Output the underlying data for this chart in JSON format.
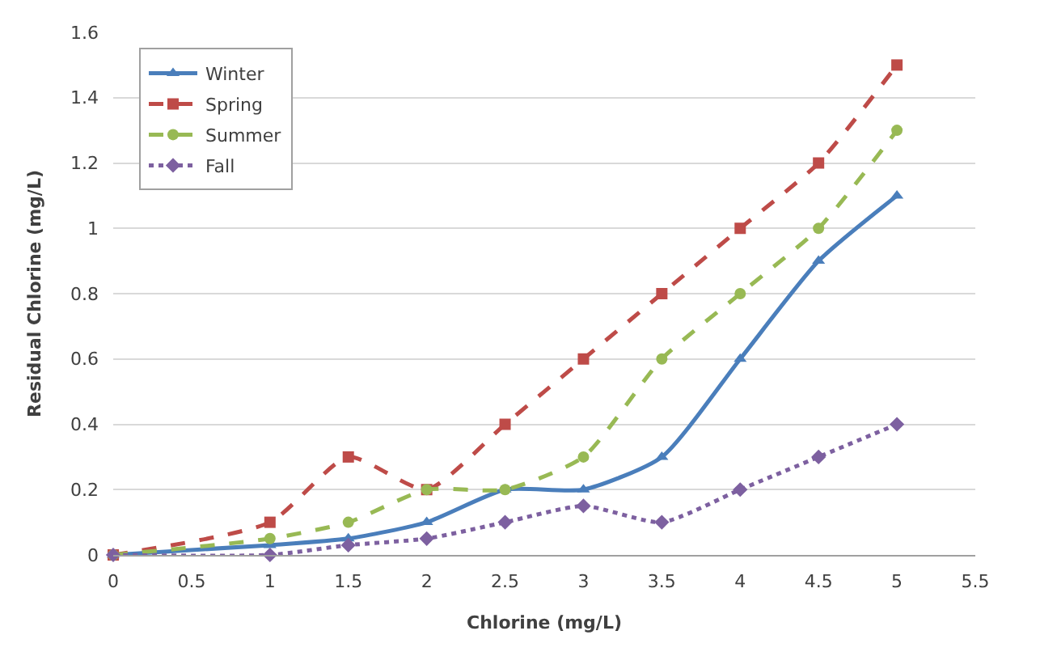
{
  "chart_data": {
    "type": "line",
    "xlabel": "Chlorine (mg/L)",
    "ylabel": "Residual Chlorine (mg/L)",
    "x": [
      0,
      1,
      1.5,
      2,
      2.5,
      3,
      3.5,
      4,
      4.5,
      5
    ],
    "series": [
      {
        "name": "Winter",
        "color": "#4a7ebb",
        "marker": "triangle",
        "line_style": "solid",
        "values": [
          0,
          0.03,
          0.05,
          0.1,
          0.2,
          0.2,
          0.3,
          0.6,
          0.9,
          1.1
        ]
      },
      {
        "name": "Spring",
        "color": "#be4b48",
        "marker": "square",
        "line_style": "dashed",
        "values": [
          0,
          0.1,
          0.3,
          0.2,
          0.4,
          0.6,
          0.8,
          1.0,
          1.2,
          1.5
        ]
      },
      {
        "name": "Summer",
        "color": "#98b954",
        "marker": "circle",
        "line_style": "dashed",
        "values": [
          0,
          0.05,
          0.1,
          0.2,
          0.2,
          0.3,
          0.6,
          0.8,
          1.0,
          1.3
        ]
      },
      {
        "name": "Fall",
        "color": "#7d60a0",
        "marker": "diamond",
        "line_style": "dotted",
        "values": [
          0,
          0,
          0.03,
          0.05,
          0.1,
          0.15,
          0.1,
          0.2,
          0.3,
          0.4
        ]
      }
    ],
    "xlim": [
      0,
      5.5
    ],
    "xticks": [
      0,
      0.5,
      1,
      1.5,
      2,
      2.5,
      3,
      3.5,
      4,
      4.5,
      5,
      5.5
    ],
    "ylim": [
      0,
      1.6
    ],
    "yticks": [
      0,
      0.2,
      0.4,
      0.6,
      0.8,
      1,
      1.2,
      1.4,
      1.6
    ],
    "grid": "y",
    "legend": "top left"
  }
}
